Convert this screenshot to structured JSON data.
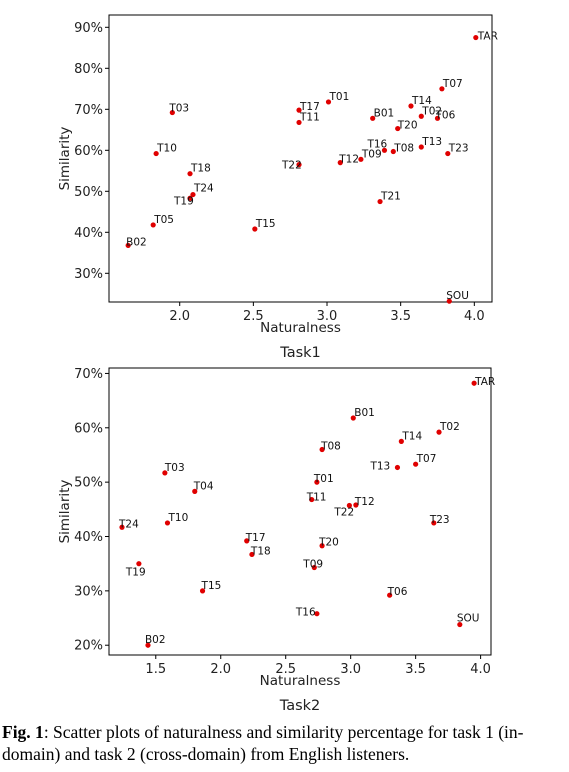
{
  "chart_data": [
    {
      "type": "scatter",
      "title": "Task1",
      "xlabel": "Naturalness",
      "ylabel": "Similarity",
      "xlim": [
        1.52,
        4.12
      ],
      "ylim": [
        23,
        93
      ],
      "xticks": [
        2.0,
        2.5,
        3.0,
        3.5,
        4.0
      ],
      "xtick_labels": [
        "2.0",
        "2.5",
        "3.0",
        "3.5",
        "4.0"
      ],
      "yticks": [
        30,
        40,
        50,
        60,
        70,
        80,
        90
      ],
      "ytick_labels": [
        "30%",
        "40%",
        "50%",
        "60%",
        "70%",
        "80%",
        "90%"
      ],
      "marker_color": "#e00000",
      "points": [
        {
          "label": "TAR",
          "x": 4.01,
          "y": 87.5
        },
        {
          "label": "T07",
          "x": 3.78,
          "y": 75.0
        },
        {
          "label": "T03",
          "x": 1.95,
          "y": 69.2
        },
        {
          "label": "T01",
          "x": 3.01,
          "y": 71.8
        },
        {
          "label": "T17",
          "x": 2.81,
          "y": 69.8
        },
        {
          "label": "T11",
          "x": 2.81,
          "y": 66.8
        },
        {
          "label": "B01",
          "x": 3.31,
          "y": 67.8
        },
        {
          "label": "T14",
          "x": 3.57,
          "y": 70.8
        },
        {
          "label": "T02",
          "x": 3.64,
          "y": 68.3
        },
        {
          "label": "T06",
          "x": 3.75,
          "y": 67.8
        },
        {
          "label": "T20",
          "x": 3.48,
          "y": 65.3
        },
        {
          "label": "T10",
          "x": 1.84,
          "y": 59.2
        },
        {
          "label": "T13",
          "x": 3.64,
          "y": 60.8
        },
        {
          "label": "T16",
          "x": 3.39,
          "y": 60.0
        },
        {
          "label": "T08",
          "x": 3.45,
          "y": 59.7
        },
        {
          "label": "T23",
          "x": 3.82,
          "y": 59.2
        },
        {
          "label": "T09",
          "x": 3.23,
          "y": 57.8
        },
        {
          "label": "T12",
          "x": 3.09,
          "y": 57.0
        },
        {
          "label": "T22",
          "x": 2.81,
          "y": 56.5
        },
        {
          "label": "T18",
          "x": 2.07,
          "y": 54.3
        },
        {
          "label": "T24",
          "x": 2.09,
          "y": 49.2
        },
        {
          "label": "T19",
          "x": 2.07,
          "y": 48.3
        },
        {
          "label": "T21",
          "x": 3.36,
          "y": 47.5
        },
        {
          "label": "T05",
          "x": 1.82,
          "y": 41.8
        },
        {
          "label": "T15",
          "x": 2.51,
          "y": 40.8
        },
        {
          "label": "B02",
          "x": 1.65,
          "y": 36.8
        },
        {
          "label": "SOU",
          "x": 3.83,
          "y": 23.2
        }
      ]
    },
    {
      "type": "scatter",
      "title": "Task2",
      "xlabel": "Naturalness",
      "ylabel": "Similarity",
      "xlim": [
        1.14,
        4.08
      ],
      "ylim": [
        18.2,
        71
      ],
      "xticks": [
        1.5,
        2.0,
        2.5,
        3.0,
        3.5,
        4.0
      ],
      "xtick_labels": [
        "1.5",
        "2.0",
        "2.5",
        "3.0",
        "3.5",
        "4.0"
      ],
      "yticks": [
        20,
        30,
        40,
        50,
        60,
        70
      ],
      "ytick_labels": [
        "20%",
        "30%",
        "40%",
        "50%",
        "60%",
        "70%"
      ],
      "marker_color": "#e00000",
      "points": [
        {
          "label": "TAR",
          "x": 3.95,
          "y": 68.2
        },
        {
          "label": "B01",
          "x": 3.02,
          "y": 61.8
        },
        {
          "label": "T02",
          "x": 3.68,
          "y": 59.2
        },
        {
          "label": "T14",
          "x": 3.39,
          "y": 57.5
        },
        {
          "label": "T08",
          "x": 2.78,
          "y": 56.0
        },
        {
          "label": "T07",
          "x": 3.5,
          "y": 53.3
        },
        {
          "label": "T13",
          "x": 3.36,
          "y": 52.7
        },
        {
          "label": "T03",
          "x": 1.57,
          "y": 51.7
        },
        {
          "label": "T01",
          "x": 2.74,
          "y": 50.0
        },
        {
          "label": "T04",
          "x": 1.8,
          "y": 48.3
        },
        {
          "label": "T11",
          "x": 2.7,
          "y": 46.8
        },
        {
          "label": "T12",
          "x": 3.04,
          "y": 45.8
        },
        {
          "label": "T22",
          "x": 2.99,
          "y": 45.7
        },
        {
          "label": "T10",
          "x": 1.59,
          "y": 42.5
        },
        {
          "label": "T23",
          "x": 3.64,
          "y": 42.5
        },
        {
          "label": "T24",
          "x": 1.24,
          "y": 41.7
        },
        {
          "label": "T17",
          "x": 2.2,
          "y": 39.2
        },
        {
          "label": "T20",
          "x": 2.78,
          "y": 38.3
        },
        {
          "label": "T18",
          "x": 2.24,
          "y": 36.7
        },
        {
          "label": "T19",
          "x": 1.37,
          "y": 35.0
        },
        {
          "label": "T09",
          "x": 2.72,
          "y": 34.3
        },
        {
          "label": "T15",
          "x": 1.86,
          "y": 30.0
        },
        {
          "label": "T06",
          "x": 3.3,
          "y": 29.2
        },
        {
          "label": "T16",
          "x": 2.74,
          "y": 25.8
        },
        {
          "label": "SOU",
          "x": 3.84,
          "y": 23.8
        },
        {
          "label": "B02",
          "x": 1.44,
          "y": 20.0
        }
      ]
    }
  ],
  "caption": {
    "label": "Fig. 1",
    "text": ": Scatter plots of naturalness and similarity percentage for task 1 (in-domain) and task 2 (cross-domain) from English listeners."
  }
}
